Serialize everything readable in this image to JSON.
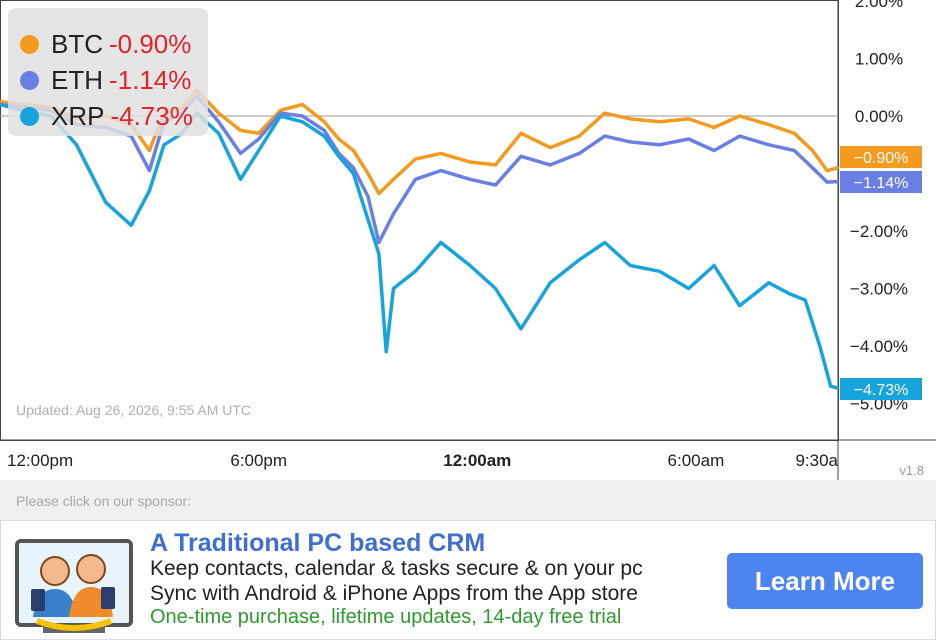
{
  "chart_data": {
    "type": "line",
    "ylim": [
      -5.0,
      2.0
    ],
    "y_ticks": [
      "2.00%",
      "1.00%",
      "0.00%",
      "−2.00%",
      "−3.00%",
      "−4.00%",
      "−5.00%"
    ],
    "y_tick_values": [
      2,
      1,
      0,
      -2,
      -3,
      -4,
      -5
    ],
    "x_ticks": [
      {
        "label": "12:00pm",
        "bold": false,
        "hour": 0
      },
      {
        "label": "6:00pm",
        "bold": false,
        "hour": 6
      },
      {
        "label": "12:00am",
        "bold": true,
        "hour": 12
      },
      {
        "label": "6:00am",
        "bold": false,
        "hour": 18
      },
      {
        "label": "9:30a",
        "bold": false,
        "hour": 21.5
      }
    ],
    "hours_span": [
      -1.1,
      21.9
    ],
    "series": [
      {
        "name": "BTC",
        "change": "-0.90%",
        "tag": "-0.90%",
        "color": "#f39a1f",
        "x": [
          -1.1,
          -0.5,
          0.3,
          1.0,
          1.8,
          2.5,
          3.0,
          3.4,
          3.9,
          4.3,
          4.9,
          5.5,
          6.0,
          6.6,
          7.2,
          7.8,
          8.2,
          8.6,
          9.0,
          9.3,
          9.7,
          10.3,
          11.0,
          11.8,
          12.5,
          13.2,
          14.0,
          14.8,
          15.5,
          16.2,
          17.0,
          17.8,
          18.5,
          19.2,
          20.0,
          20.7,
          21.2,
          21.6,
          21.9
        ],
        "y": [
          0.25,
          0.2,
          0.15,
          -0.05,
          0.0,
          -0.15,
          -0.6,
          0.05,
          0.15,
          0.45,
          0.05,
          -0.25,
          -0.3,
          0.1,
          0.2,
          -0.1,
          -0.4,
          -0.6,
          -1.0,
          -1.35,
          -1.1,
          -0.75,
          -0.65,
          -0.8,
          -0.85,
          -0.3,
          -0.55,
          -0.35,
          0.05,
          -0.05,
          -0.1,
          -0.05,
          -0.2,
          0.0,
          -0.15,
          -0.3,
          -0.6,
          -0.95,
          -0.9
        ]
      },
      {
        "name": "ETH",
        "change": "-1.14%",
        "tag": "-1.14%",
        "color": "#6a7fe3",
        "x": [
          -1.1,
          -0.5,
          0.3,
          1.0,
          1.8,
          2.5,
          3.0,
          3.4,
          3.9,
          4.3,
          4.9,
          5.5,
          6.0,
          6.6,
          7.2,
          7.8,
          8.2,
          8.6,
          9.0,
          9.3,
          9.7,
          10.3,
          11.0,
          11.8,
          12.5,
          13.2,
          14.0,
          14.8,
          15.5,
          16.2,
          17.0,
          17.8,
          18.5,
          19.2,
          20.0,
          20.7,
          21.2,
          21.6,
          21.9
        ],
        "y": [
          0.2,
          0.15,
          0.1,
          -0.15,
          -0.2,
          -0.35,
          -0.95,
          -0.1,
          0.05,
          0.35,
          -0.1,
          -0.65,
          -0.4,
          0.05,
          0.0,
          -0.25,
          -0.65,
          -0.9,
          -1.4,
          -2.2,
          -1.7,
          -1.1,
          -0.95,
          -1.1,
          -1.2,
          -0.7,
          -0.85,
          -0.65,
          -0.35,
          -0.45,
          -0.5,
          -0.4,
          -0.6,
          -0.35,
          -0.5,
          -0.6,
          -0.9,
          -1.15,
          -1.14
        ]
      },
      {
        "name": "XRP",
        "change": "-4.73%",
        "tag": "-4.73%",
        "color": "#17a4dd",
        "x": [
          -1.1,
          -0.5,
          0.3,
          1.0,
          1.8,
          2.5,
          3.0,
          3.4,
          3.9,
          4.3,
          4.9,
          5.5,
          6.0,
          6.6,
          7.2,
          7.8,
          8.2,
          8.6,
          9.0,
          9.3,
          9.5,
          9.7,
          10.3,
          11.0,
          11.8,
          12.5,
          13.2,
          14.0,
          14.8,
          15.5,
          16.2,
          17.0,
          17.8,
          18.5,
          19.2,
          20.0,
          20.6,
          21.0,
          21.4,
          21.7,
          21.9
        ],
        "y": [
          0.2,
          0.1,
          0.0,
          -0.5,
          -1.5,
          -1.9,
          -1.3,
          -0.5,
          -0.3,
          0.05,
          -0.3,
          -1.1,
          -0.6,
          0.0,
          -0.1,
          -0.35,
          -0.7,
          -1.0,
          -1.8,
          -2.4,
          -4.1,
          -3.0,
          -2.7,
          -2.2,
          -2.6,
          -3.0,
          -3.7,
          -2.9,
          -2.5,
          -2.2,
          -2.6,
          -2.7,
          -3.0,
          -2.6,
          -3.3,
          -2.9,
          -3.1,
          -3.2,
          -4.0,
          -4.7,
          -4.73
        ]
      }
    ]
  },
  "updated_text": "Updated: Aug 26, 2026, 9:55 AM UTC",
  "version": "v1.8",
  "sponsor": {
    "note": "Please click on our sponsor:",
    "title": "A Traditional PC based CRM",
    "line1": "Keep contacts, calendar & tasks secure & on your pc",
    "line2": "Sync with Android & iPhone Apps from the App store",
    "line3": "One-time purchase, lifetime updates, 14-day free trial",
    "button": "Learn More",
    "logo_icon": "crm-people-devices-icon"
  }
}
